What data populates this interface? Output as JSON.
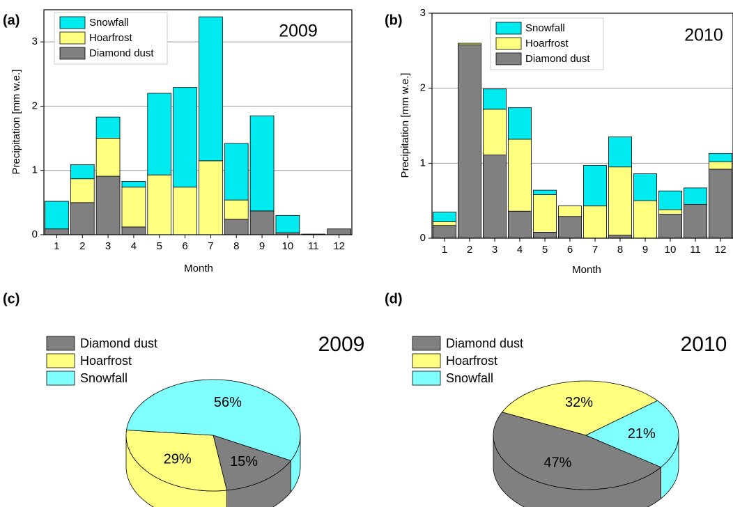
{
  "chart_data": [
    {
      "type": "bar",
      "stacked": true,
      "panel_label": "(a)",
      "annotation": "2009",
      "xlabel": "Month",
      "ylabel": "Precipitation [mm w.e.]",
      "categories": [
        "1",
        "2",
        "3",
        "4",
        "5",
        "6",
        "7",
        "8",
        "9",
        "10",
        "11",
        "12"
      ],
      "series": [
        {
          "name": "Diamond dust",
          "color": "#808080",
          "values": [
            0.09,
            0.5,
            0.91,
            0.12,
            0,
            0,
            0,
            0.24,
            0.37,
            0.03,
            0,
            0.09
          ]
        },
        {
          "name": "Hoarfrost",
          "color": "#ffff80",
          "values": [
            0,
            0.37,
            0.59,
            0.62,
            0.93,
            0.74,
            1.15,
            0.3,
            0,
            0,
            0,
            0
          ]
        },
        {
          "name": "Snowfall",
          "color": "#00ebf0",
          "values": [
            0.43,
            0.22,
            0.33,
            0.09,
            1.27,
            1.55,
            2.24,
            0.88,
            1.48,
            0.27,
            0.01,
            0
          ]
        }
      ],
      "ylim": [
        0,
        3.5
      ],
      "yticks": [
        0,
        1,
        2,
        3
      ],
      "grid": true
    },
    {
      "type": "bar",
      "stacked": true,
      "panel_label": "(b)",
      "annotation": "2010",
      "xlabel": "Month",
      "ylabel": "Precipitation [mm w.e.]",
      "categories": [
        "1",
        "2",
        "3",
        "4",
        "5",
        "6",
        "7",
        "8",
        "9",
        "10",
        "11",
        "12"
      ],
      "series": [
        {
          "name": "Diamond dust",
          "color": "#808080",
          "values": [
            0.17,
            2.58,
            1.11,
            0.36,
            0.08,
            0.29,
            0,
            0.04,
            0,
            0.32,
            0.45,
            0.92
          ]
        },
        {
          "name": "Hoarfrost",
          "color": "#ffff80",
          "values": [
            0.05,
            0.02,
            0.61,
            0.96,
            0.5,
            0.14,
            0.43,
            0.91,
            0.5,
            0.06,
            0,
            0.1
          ]
        },
        {
          "name": "Snowfall",
          "color": "#00ebf0",
          "values": [
            0.13,
            0,
            0.27,
            0.42,
            0.06,
            0,
            0.54,
            0.4,
            0.36,
            0.25,
            0.22,
            0.11
          ]
        }
      ],
      "ylim": [
        0,
        3
      ],
      "yticks": [
        0,
        1,
        2,
        3
      ],
      "grid": true
    },
    {
      "type": "pie",
      "panel_label": "(c)",
      "annotation": "2009",
      "categories": [
        "Diamond dust",
        "Hoarfrost",
        "Snowfall"
      ],
      "values": [
        15,
        29,
        56
      ],
      "value_labels": [
        "15%",
        "29%",
        "56%"
      ],
      "colors": [
        "#808080",
        "#ffff80",
        "#80ffff"
      ]
    },
    {
      "type": "pie",
      "panel_label": "(d)",
      "annotation": "2010",
      "categories": [
        "Diamond dust",
        "Hoarfrost",
        "Snowfall"
      ],
      "values": [
        47,
        32,
        21
      ],
      "value_labels": [
        "47%",
        "32%",
        "21%"
      ],
      "colors": [
        "#808080",
        "#ffff80",
        "#80ffff"
      ]
    }
  ]
}
